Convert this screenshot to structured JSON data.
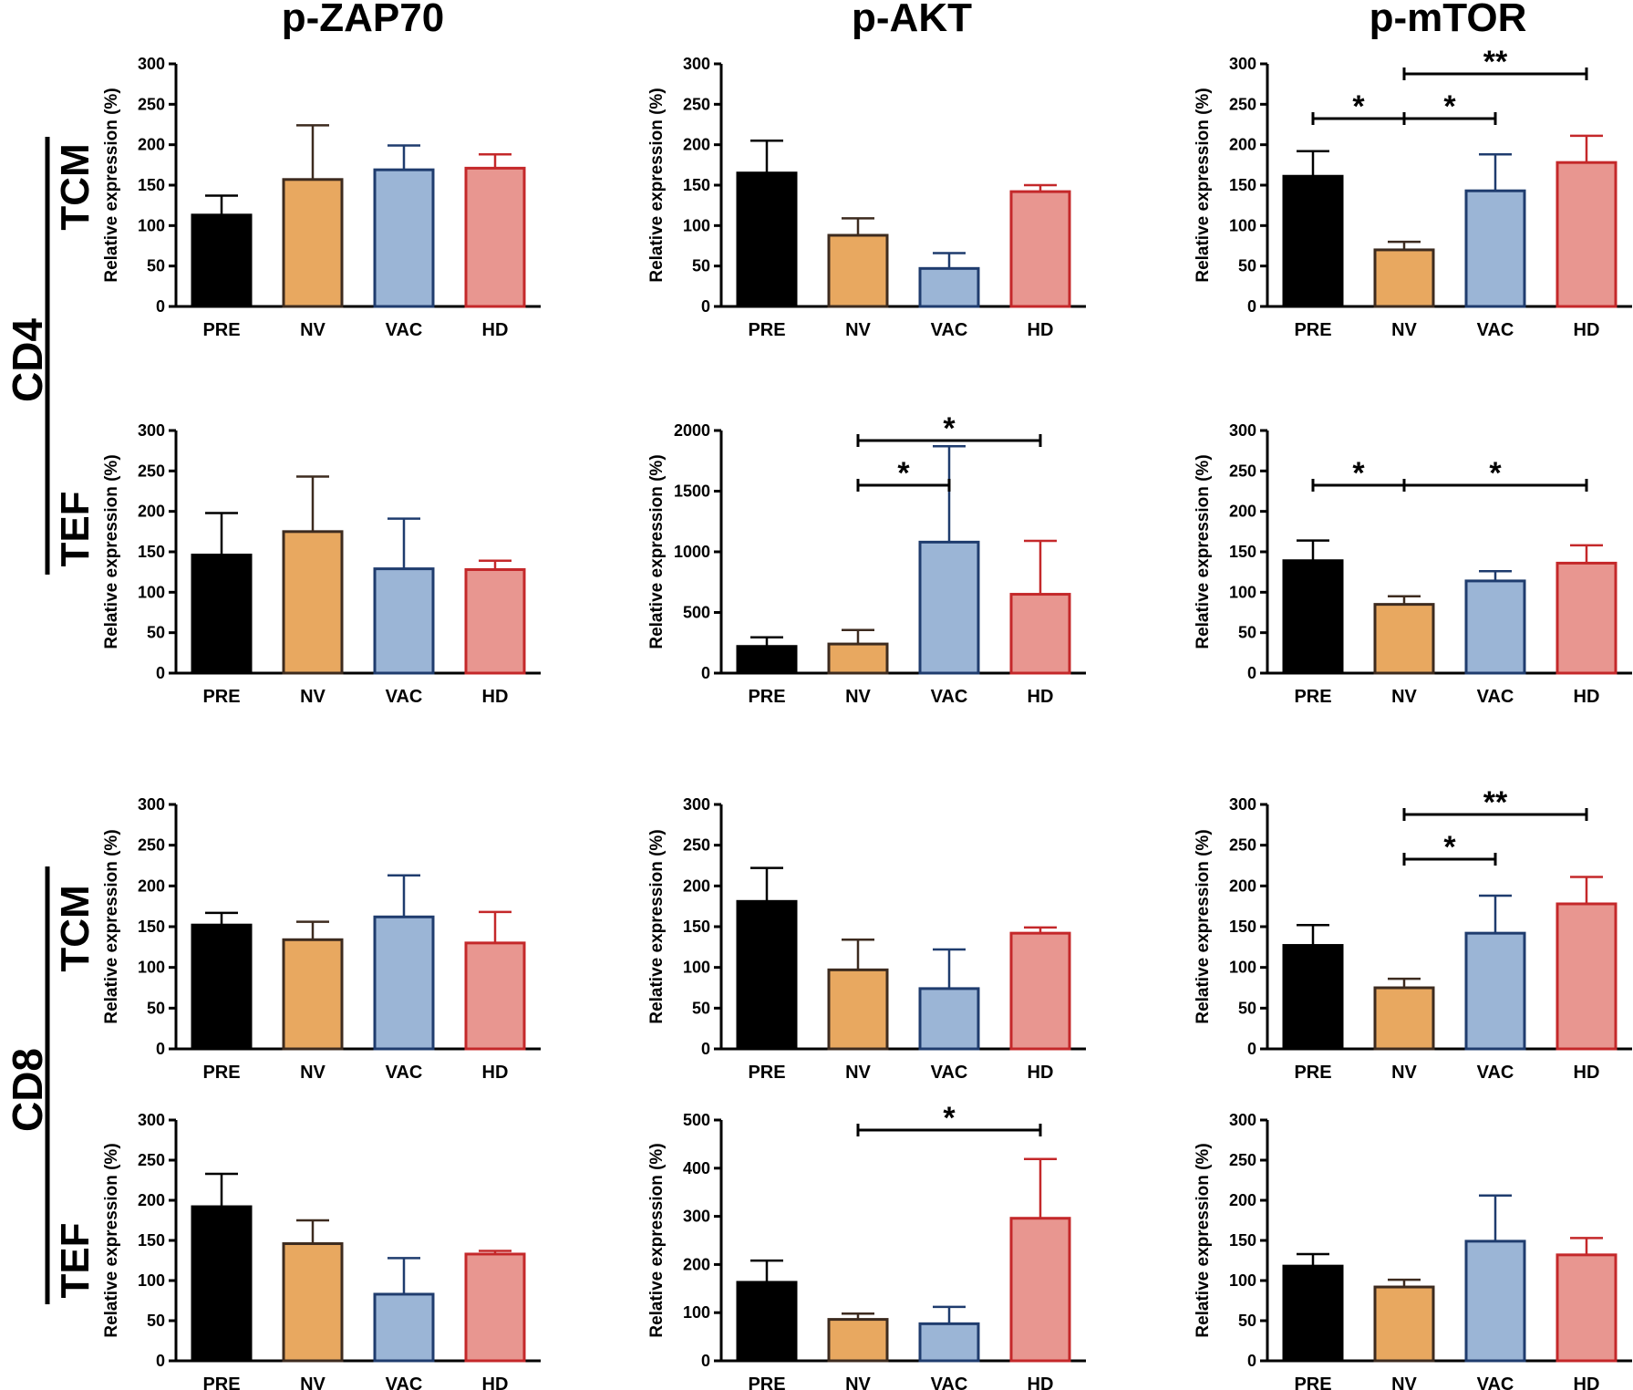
{
  "figure": {
    "columns": [
      "p-ZAP70",
      "p-AKT",
      "p-mTOR"
    ],
    "groups": [
      {
        "label": "CD4",
        "subgroups": [
          "TCM",
          "TEF"
        ]
      },
      {
        "label": "CD8",
        "subgroups": [
          "TCM",
          "TEF"
        ]
      }
    ],
    "colors": {
      "PRE": {
        "fill": "#000000",
        "stroke": "#000000"
      },
      "NV": {
        "fill": "#e8a860",
        "stroke": "#3d2b1f"
      },
      "VAC": {
        "fill": "#9bb5d6",
        "stroke": "#1f3c6e"
      },
      "HD": {
        "fill": "#e89690",
        "stroke": "#c4282a"
      }
    }
  },
  "chart_data": [
    {
      "id": "cd4-tcm-zap70",
      "type": "bar",
      "group": "CD4",
      "subgroup": "TCM",
      "marker": "p-ZAP70",
      "ylabel": "Relative expression (%)",
      "categories": [
        "PRE",
        "NV",
        "VAC",
        "HD"
      ],
      "values": [
        113,
        157,
        169,
        171
      ],
      "errors": [
        24,
        67,
        30,
        17
      ],
      "ylim": [
        0,
        300
      ],
      "ticks": [
        0,
        50,
        100,
        150,
        200,
        250,
        300
      ],
      "significance": []
    },
    {
      "id": "cd4-tcm-akt",
      "type": "bar",
      "group": "CD4",
      "subgroup": "TCM",
      "marker": "p-AKT",
      "ylabel": "Relative expression (%)",
      "categories": [
        "PRE",
        "NV",
        "VAC",
        "HD"
      ],
      "values": [
        165,
        88,
        47,
        142
      ],
      "errors": [
        40,
        21,
        19,
        8
      ],
      "ylim": [
        0,
        300
      ],
      "ticks": [
        0,
        50,
        100,
        150,
        200,
        250,
        300
      ],
      "significance": []
    },
    {
      "id": "cd4-tcm-mtor",
      "type": "bar",
      "group": "CD4",
      "subgroup": "TCM",
      "marker": "p-mTOR",
      "ylabel": "Relative expression (%)",
      "categories": [
        "PRE",
        "NV",
        "VAC",
        "HD"
      ],
      "values": [
        161,
        70,
        143,
        178
      ],
      "errors": [
        31,
        10,
        45,
        33
      ],
      "ylim": [
        0,
        300
      ],
      "ticks": [
        0,
        50,
        100,
        150,
        200,
        250,
        300
      ],
      "significance": [
        {
          "from": 0,
          "to": 1,
          "label": "*",
          "level": 0
        },
        {
          "from": 1,
          "to": 2,
          "label": "*",
          "level": 0
        },
        {
          "from": 1,
          "to": 3,
          "label": "**",
          "level": 1
        }
      ]
    },
    {
      "id": "cd4-tef-zap70",
      "type": "bar",
      "group": "CD4",
      "subgroup": "TEF",
      "marker": "p-ZAP70",
      "ylabel": "Relative expression (%)",
      "categories": [
        "PRE",
        "NV",
        "VAC",
        "HD"
      ],
      "values": [
        146,
        175,
        129,
        128
      ],
      "errors": [
        52,
        68,
        62,
        11
      ],
      "ylim": [
        0,
        300
      ],
      "ticks": [
        0,
        50,
        100,
        150,
        200,
        250,
        300
      ],
      "significance": []
    },
    {
      "id": "cd4-tef-akt",
      "type": "bar",
      "group": "CD4",
      "subgroup": "TEF",
      "marker": "p-AKT",
      "ylabel": "Relative expression (%)",
      "categories": [
        "PRE",
        "NV",
        "VAC",
        "HD"
      ],
      "values": [
        220,
        240,
        1080,
        650
      ],
      "errors": [
        75,
        115,
        790,
        440
      ],
      "ylim": [
        0,
        2000
      ],
      "ticks": [
        0,
        500,
        1000,
        1500,
        2000
      ],
      "significance": [
        {
          "from": 1,
          "to": 2,
          "label": "*",
          "level": 0
        },
        {
          "from": 1,
          "to": 3,
          "label": "*",
          "level": 1
        }
      ]
    },
    {
      "id": "cd4-tef-mtor",
      "type": "bar",
      "group": "CD4",
      "subgroup": "TEF",
      "marker": "p-mTOR",
      "ylabel": "Relative expression (%)",
      "categories": [
        "PRE",
        "NV",
        "VAC",
        "HD"
      ],
      "values": [
        139,
        85,
        114,
        136
      ],
      "errors": [
        25,
        10,
        12,
        22
      ],
      "ylim": [
        0,
        300
      ],
      "ticks": [
        0,
        50,
        100,
        150,
        200,
        250,
        300
      ],
      "significance": [
        {
          "from": 0,
          "to": 1,
          "label": "*",
          "level": 0
        },
        {
          "from": 1,
          "to": 3,
          "label": "*",
          "level": 0
        }
      ]
    },
    {
      "id": "cd8-tcm-zap70",
      "type": "bar",
      "group": "CD8",
      "subgroup": "TCM",
      "marker": "p-ZAP70",
      "ylabel": "Relative expression (%)",
      "categories": [
        "PRE",
        "NV",
        "VAC",
        "HD"
      ],
      "values": [
        152,
        134,
        162,
        130
      ],
      "errors": [
        15,
        22,
        51,
        38
      ],
      "ylim": [
        0,
        300
      ],
      "ticks": [
        0,
        50,
        100,
        150,
        200,
        250,
        300
      ],
      "significance": []
    },
    {
      "id": "cd8-tcm-akt",
      "type": "bar",
      "group": "CD8",
      "subgroup": "TCM",
      "marker": "p-AKT",
      "ylabel": "Relative expression (%)",
      "categories": [
        "PRE",
        "NV",
        "VAC",
        "HD"
      ],
      "values": [
        181,
        97,
        74,
        142
      ],
      "errors": [
        41,
        37,
        48,
        7
      ],
      "ylim": [
        0,
        300
      ],
      "ticks": [
        0,
        50,
        100,
        150,
        200,
        250,
        300
      ],
      "significance": []
    },
    {
      "id": "cd8-tcm-mtor",
      "type": "bar",
      "group": "CD8",
      "subgroup": "TCM",
      "marker": "p-mTOR",
      "ylabel": "Relative expression (%)",
      "categories": [
        "PRE",
        "NV",
        "VAC",
        "HD"
      ],
      "values": [
        127,
        75,
        142,
        178
      ],
      "errors": [
        25,
        11,
        46,
        33
      ],
      "ylim": [
        0,
        300
      ],
      "ticks": [
        0,
        50,
        100,
        150,
        200,
        250,
        300
      ],
      "significance": [
        {
          "from": 1,
          "to": 2,
          "label": "*",
          "level": 0
        },
        {
          "from": 1,
          "to": 3,
          "label": "**",
          "level": 1
        }
      ]
    },
    {
      "id": "cd8-tef-zap70",
      "type": "bar",
      "group": "CD8",
      "subgroup": "TEF",
      "marker": "p-ZAP70",
      "ylabel": "Relative expression (%)",
      "categories": [
        "PRE",
        "NV",
        "VAC",
        "HD"
      ],
      "values": [
        192,
        146,
        83,
        133
      ],
      "errors": [
        41,
        29,
        45,
        4
      ],
      "ylim": [
        0,
        300
      ],
      "ticks": [
        0,
        50,
        100,
        150,
        200,
        250,
        300
      ],
      "significance": []
    },
    {
      "id": "cd8-tef-akt",
      "type": "bar",
      "group": "CD8",
      "subgroup": "TEF",
      "marker": "p-AKT",
      "ylabel": "Relative expression (%)",
      "categories": [
        "PRE",
        "NV",
        "VAC",
        "HD"
      ],
      "values": [
        163,
        86,
        77,
        296
      ],
      "errors": [
        45,
        12,
        35,
        123
      ],
      "ylim": [
        0,
        500
      ],
      "ticks": [
        0,
        100,
        200,
        300,
        400,
        500
      ],
      "significance": [
        {
          "from": 1,
          "to": 3,
          "label": "*",
          "level": 1
        }
      ]
    },
    {
      "id": "cd8-tef-mtor",
      "type": "bar",
      "group": "CD8",
      "subgroup": "TEF",
      "marker": "p-mTOR",
      "ylabel": "Relative expression (%)",
      "categories": [
        "PRE",
        "NV",
        "VAC",
        "HD"
      ],
      "values": [
        118,
        92,
        149,
        132
      ],
      "errors": [
        15,
        9,
        57,
        21
      ],
      "ylim": [
        0,
        300
      ],
      "ticks": [
        0,
        50,
        100,
        150,
        200,
        250,
        300
      ],
      "significance": []
    }
  ]
}
